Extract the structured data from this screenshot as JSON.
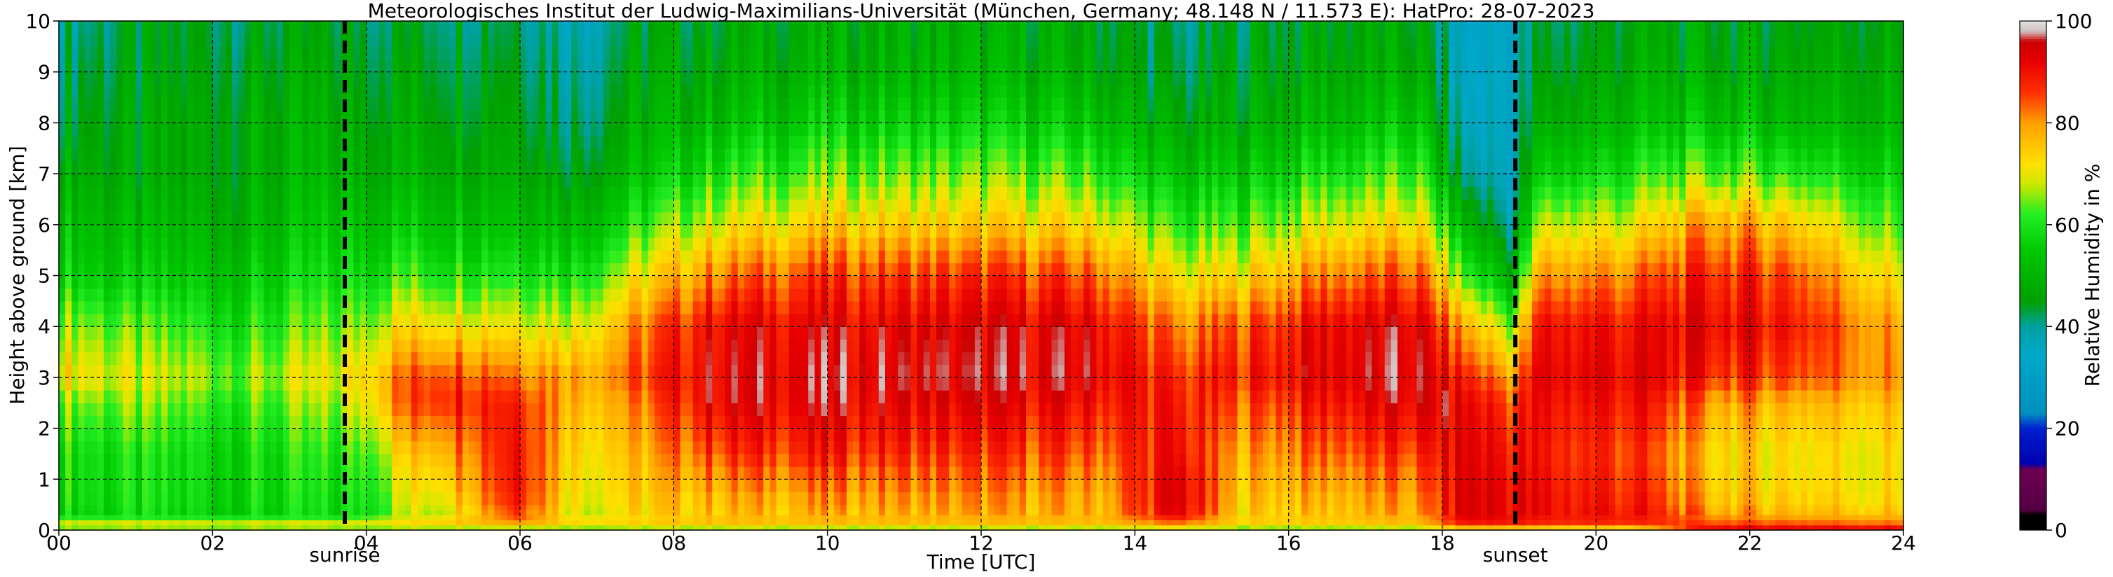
{
  "chart_data": {
    "type": "heatmap",
    "title": "Meteorologisches Institut der Ludwig-Maximilians-Universität (München, Germany; 48.148 N / 11.573 E):    HatPro: 28-07-2023",
    "xlabel": "Time [UTC]",
    "ylabel": "Height above ground [km]",
    "x_ticks": [
      "00",
      "02",
      "04",
      "06",
      "08",
      "10",
      "12",
      "14",
      "16",
      "18",
      "20",
      "22",
      "24"
    ],
    "y_ticks": [
      "0",
      "1",
      "2",
      "3",
      "4",
      "5",
      "6",
      "7",
      "8",
      "9",
      "10"
    ],
    "xlim": [
      0,
      24
    ],
    "ylim": [
      0,
      10
    ],
    "grid": true,
    "colorbar": {
      "label": "Relative Humidity in %",
      "ticks": [
        "0",
        "20",
        "40",
        "60",
        "80",
        "100"
      ],
      "range": [
        0,
        100
      ]
    },
    "events": [
      {
        "name": "sunrise",
        "time_utc": 3.72
      },
      {
        "name": "sunset",
        "time_utc": 18.95
      }
    ],
    "colormap": [
      [
        0,
        "#000000"
      ],
      [
        3,
        "#000000"
      ],
      [
        4,
        "#550044"
      ],
      [
        12,
        "#6e0050"
      ],
      [
        13,
        "#0000b0"
      ],
      [
        20,
        "#0020d0"
      ],
      [
        23,
        "#0090c0"
      ],
      [
        35,
        "#00a8c8"
      ],
      [
        40,
        "#00a0a0"
      ],
      [
        45,
        "#00a000"
      ],
      [
        55,
        "#00c800"
      ],
      [
        62,
        "#22ee22"
      ],
      [
        68,
        "#cce800"
      ],
      [
        72,
        "#ffe000"
      ],
      [
        80,
        "#ffa000"
      ],
      [
        86,
        "#ff3000"
      ],
      [
        92,
        "#e80000"
      ],
      [
        96,
        "#cc0000"
      ],
      [
        98,
        "#d0c0c0"
      ],
      [
        100,
        "#e0e0e0"
      ]
    ],
    "rh_profile_keyframes": {
      "heights_km": [
        0,
        0.1,
        0.3,
        0.7,
        1.5,
        2.5,
        3,
        4,
        5,
        6,
        7,
        8,
        9,
        10
      ],
      "times_utc": [
        {
          "t": 0.0,
          "rh": [
            60,
            72,
            58,
            60,
            60,
            66,
            74,
            68,
            58,
            54,
            50,
            46,
            44,
            40
          ]
        },
        {
          "t": 1.0,
          "rh": [
            60,
            72,
            57,
            58,
            58,
            64,
            68,
            62,
            54,
            50,
            46,
            46,
            44,
            44
          ]
        },
        {
          "t": 2.5,
          "rh": [
            60,
            72,
            57,
            58,
            58,
            62,
            66,
            60,
            55,
            50,
            48,
            48,
            46,
            44
          ]
        },
        {
          "t": 3.7,
          "rh": [
            60,
            72,
            57,
            58,
            60,
            66,
            70,
            64,
            58,
            54,
            50,
            48,
            46,
            44
          ]
        },
        {
          "t": 4.4,
          "rh": [
            60,
            74,
            66,
            68,
            72,
            82,
            82,
            72,
            62,
            55,
            50,
            48,
            46,
            44
          ]
        },
        {
          "t": 5.0,
          "rh": [
            60,
            76,
            70,
            74,
            80,
            90,
            88,
            74,
            62,
            55,
            50,
            48,
            46,
            44
          ]
        },
        {
          "t": 6.0,
          "rh": [
            60,
            78,
            88,
            92,
            92,
            90,
            84,
            72,
            62,
            55,
            50,
            48,
            46,
            44
          ]
        },
        {
          "t": 6.7,
          "rh": [
            60,
            74,
            70,
            72,
            74,
            78,
            80,
            70,
            60,
            52,
            46,
            42,
            40,
            38
          ]
        },
        {
          "t": 7.5,
          "rh": [
            60,
            74,
            72,
            74,
            76,
            80,
            84,
            80,
            70,
            60,
            52,
            48,
            46,
            44
          ]
        },
        {
          "t": 8.5,
          "rh": [
            60,
            76,
            76,
            78,
            86,
            93,
            93,
            92,
            82,
            70,
            60,
            52,
            48,
            46
          ]
        },
        {
          "t": 10.0,
          "rh": [
            60,
            76,
            77,
            80,
            88,
            93,
            94,
            92,
            86,
            74,
            64,
            56,
            50,
            48
          ]
        },
        {
          "t": 12.0,
          "rh": [
            60,
            76,
            78,
            80,
            86,
            92,
            94,
            93,
            86,
            74,
            64,
            56,
            50,
            48
          ]
        },
        {
          "t": 13.5,
          "rh": [
            60,
            76,
            77,
            78,
            84,
            90,
            93,
            92,
            84,
            72,
            62,
            54,
            48,
            46
          ]
        },
        {
          "t": 14.6,
          "rh": [
            62,
            80,
            92,
            94,
            90,
            88,
            86,
            80,
            70,
            60,
            52,
            46,
            42,
            40
          ]
        },
        {
          "t": 15.3,
          "rh": [
            60,
            74,
            74,
            76,
            78,
            84,
            88,
            84,
            72,
            62,
            54,
            48,
            46,
            44
          ]
        },
        {
          "t": 16.5,
          "rh": [
            60,
            74,
            76,
            78,
            84,
            90,
            93,
            92,
            82,
            70,
            60,
            52,
            48,
            46
          ]
        },
        {
          "t": 17.7,
          "rh": [
            60,
            76,
            78,
            80,
            86,
            93,
            94,
            93,
            84,
            72,
            62,
            54,
            48,
            46
          ]
        },
        {
          "t": 18.3,
          "rh": [
            66,
            88,
            94,
            94,
            93,
            92,
            88,
            78,
            62,
            50,
            40,
            36,
            34,
            32
          ]
        },
        {
          "t": 18.9,
          "rh": [
            66,
            88,
            92,
            92,
            90,
            86,
            80,
            66,
            50,
            40,
            36,
            36,
            36,
            36
          ]
        },
        {
          "t": 19.3,
          "rh": [
            64,
            86,
            90,
            90,
            88,
            90,
            92,
            90,
            80,
            68,
            56,
            48,
            44,
            42
          ]
        },
        {
          "t": 20.5,
          "rh": [
            64,
            86,
            90,
            88,
            86,
            90,
            92,
            90,
            82,
            70,
            60,
            52,
            48,
            46
          ]
        },
        {
          "t": 21.5,
          "rh": [
            96,
            86,
            80,
            76,
            74,
            80,
            88,
            92,
            88,
            80,
            64,
            54,
            48,
            46
          ]
        },
        {
          "t": 22.5,
          "rh": [
            96,
            86,
            78,
            74,
            72,
            78,
            86,
            90,
            86,
            76,
            62,
            52,
            48,
            46
          ]
        },
        {
          "t": 24.0,
          "rh": [
            96,
            84,
            76,
            72,
            72,
            76,
            80,
            78,
            70,
            62,
            56,
            50,
            48,
            46
          ]
        }
      ]
    }
  }
}
